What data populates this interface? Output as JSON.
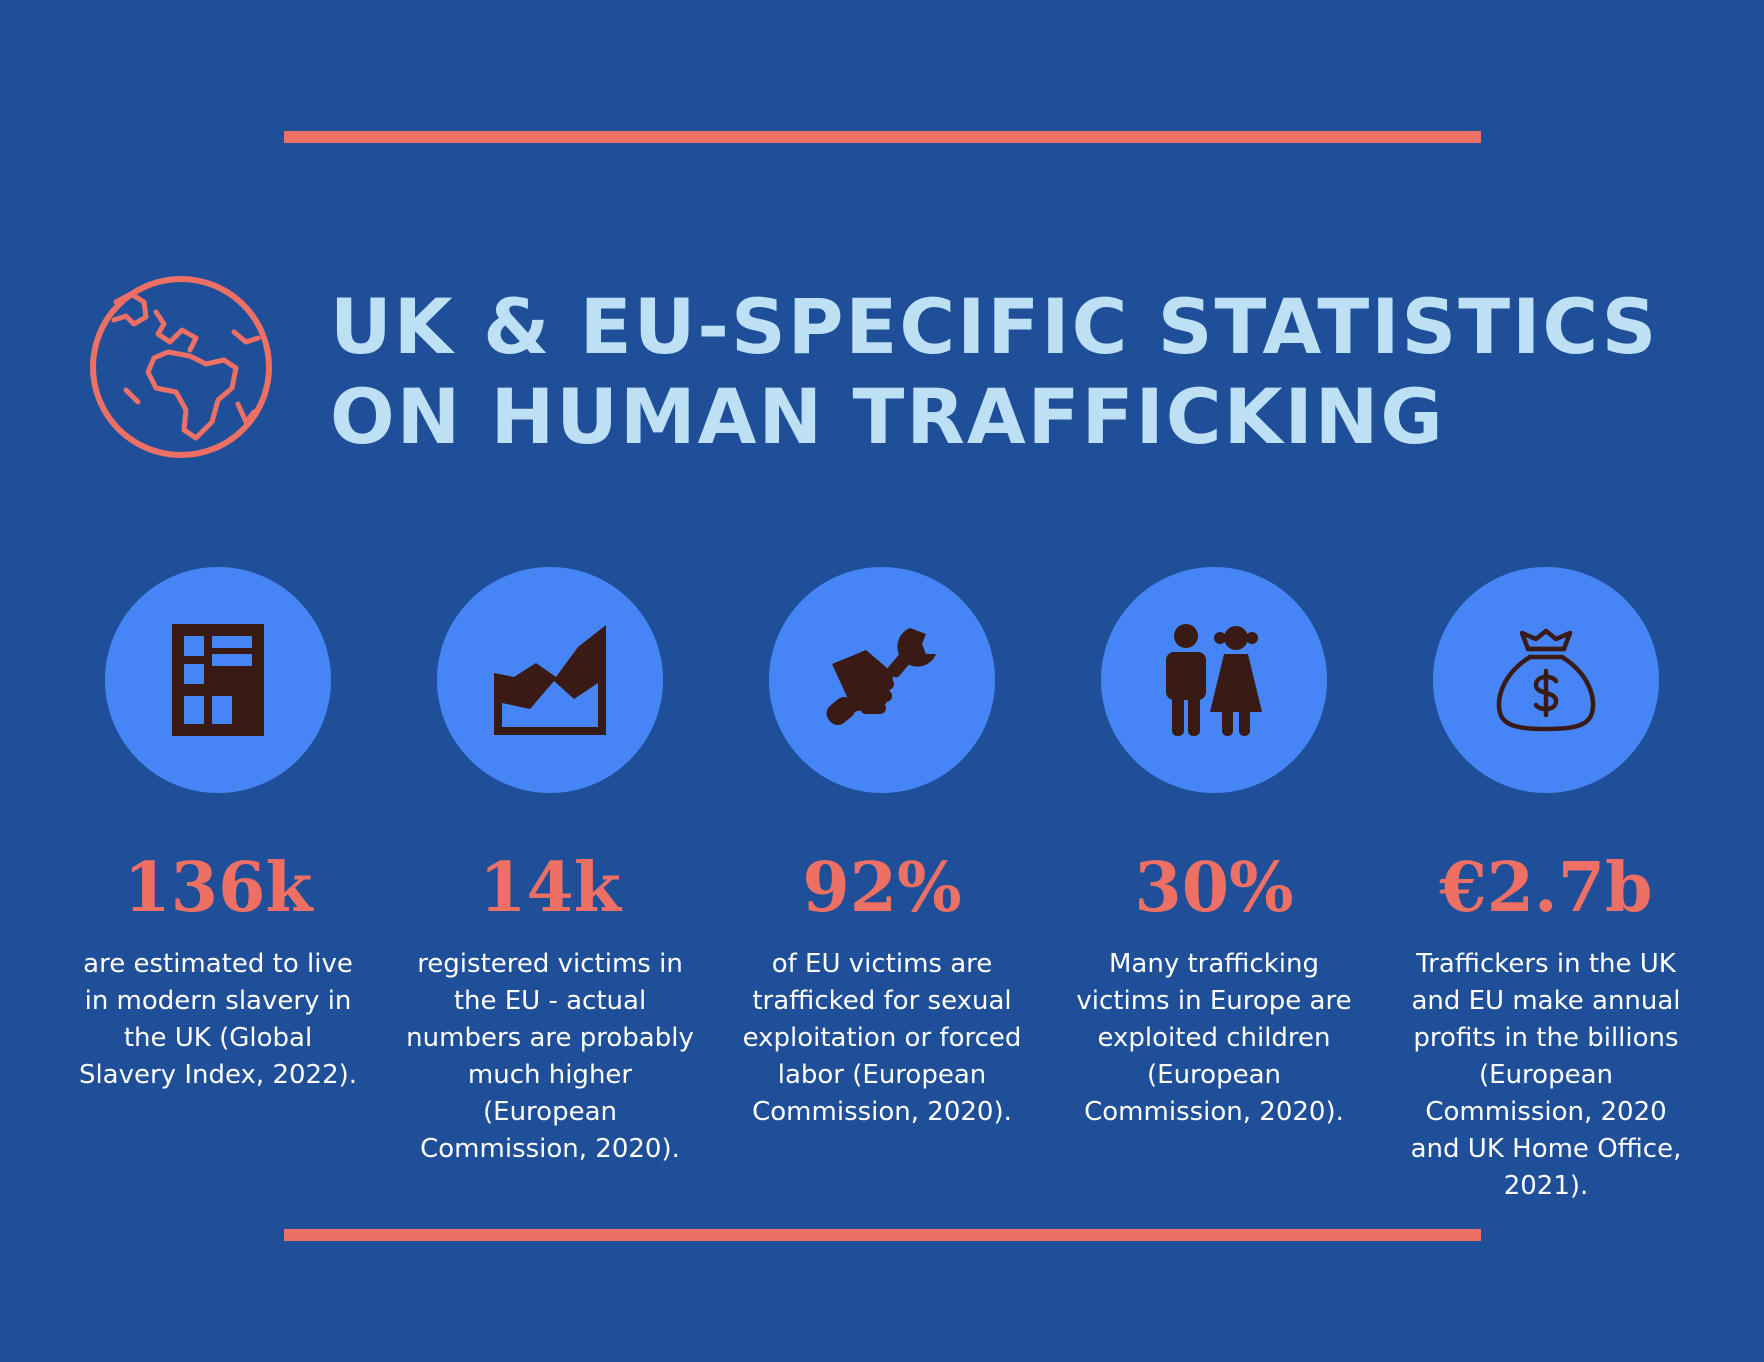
{
  "colors": {
    "background": "#1f4f99",
    "accent": "#ee6f64",
    "title": "#bde0f5",
    "circle": "#4685f5",
    "icon": "#3a1a14"
  },
  "header": {
    "icon": "globe-icon",
    "title_line1": "UK & EU-SPECIFIC STATISTICS",
    "title_line2": "ON HUMAN TRAFFICKING"
  },
  "stats": [
    {
      "icon": "building-icon",
      "value": "136k",
      "desc": "are estimated to live in modern slavery in the UK (Global Slavery Index, 2022)."
    },
    {
      "icon": "area-chart-icon",
      "value": "14k",
      "desc": "registered victims in the EU - actual numbers are probably much higher (European Commission, 2020)."
    },
    {
      "icon": "hand-wrench-icon",
      "value": "92%",
      "desc": "of EU victims are trafficked for sexual exploitation or forced labor (European Commission, 2020)."
    },
    {
      "icon": "children-icon",
      "value": "30%",
      "desc": "Many trafficking victims in Europe are exploited children (European Commission, 2020)."
    },
    {
      "icon": "money-bag-icon",
      "value": "€2.7b",
      "desc": "Traffickers in the UK and EU make annual profits in the billions (European Commission, 2020 and UK Home Office, 2021)."
    }
  ]
}
